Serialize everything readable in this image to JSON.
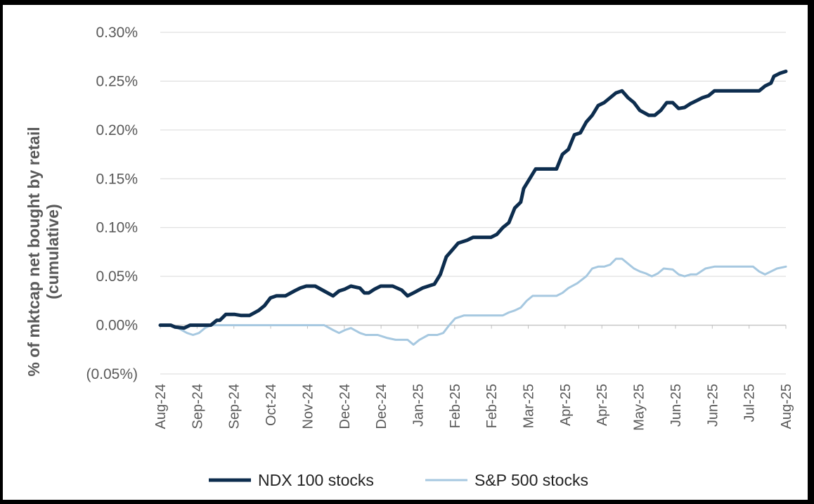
{
  "chart_data": {
    "type": "line",
    "ylabel": [
      "% of mktcap net bought  by retail",
      "(cumulative)"
    ],
    "xlabel": "",
    "ylim": [
      -0.05,
      0.3
    ],
    "yticks": [
      {
        "value": 0.3,
        "label": "0.30%"
      },
      {
        "value": 0.25,
        "label": "0.25%"
      },
      {
        "value": 0.2,
        "label": "0.20%"
      },
      {
        "value": 0.15,
        "label": "0.15%"
      },
      {
        "value": 0.1,
        "label": "0.10%"
      },
      {
        "value": 0.05,
        "label": "0.05%"
      },
      {
        "value": 0.0,
        "label": "0.00%"
      },
      {
        "value": -0.05,
        "label": "(0.05%)"
      }
    ],
    "xticks": [
      "Aug-24",
      "Sep-24",
      "Sep-24",
      "Oct-24",
      "Nov-24",
      "Dec-24",
      "Dec-24",
      "Jan-25",
      "Feb-25",
      "Feb-25",
      "Mar-25",
      "Apr-25",
      "Apr-25",
      "May-25",
      "Jun-25",
      "Jun-25",
      "Jul-25",
      "Aug-25"
    ],
    "grid": true,
    "legend_position": "bottom",
    "series": [
      {
        "name": "NDX 100 stocks",
        "color": "#0d2d4e",
        "points": [
          [
            0,
            0.0
          ],
          [
            0.35,
            0.0
          ],
          [
            0.5,
            -0.002
          ],
          [
            0.8,
            -0.003
          ],
          [
            1,
            0.0
          ],
          [
            1.4,
            0.0
          ],
          [
            1.7,
            0.0
          ],
          [
            1.9,
            0.005
          ],
          [
            2,
            0.005
          ],
          [
            2.2,
            0.011
          ],
          [
            2.5,
            0.011
          ],
          [
            2.7,
            0.01
          ],
          [
            3,
            0.01
          ],
          [
            3.3,
            0.015
          ],
          [
            3.5,
            0.02
          ],
          [
            3.7,
            0.028
          ],
          [
            3.9,
            0.03
          ],
          [
            4.2,
            0.03
          ],
          [
            4.5,
            0.035
          ],
          [
            4.7,
            0.038
          ],
          [
            4.9,
            0.04
          ],
          [
            5.2,
            0.04
          ],
          [
            5.5,
            0.035
          ],
          [
            5.8,
            0.03
          ],
          [
            6,
            0.035
          ],
          [
            6.2,
            0.037
          ],
          [
            6.4,
            0.04
          ],
          [
            6.7,
            0.038
          ],
          [
            6.85,
            0.033
          ],
          [
            7,
            0.033
          ],
          [
            7.2,
            0.037
          ],
          [
            7.4,
            0.04
          ],
          [
            7.8,
            0.04
          ],
          [
            8.1,
            0.036
          ],
          [
            8.3,
            0.03
          ],
          [
            8.5,
            0.033
          ],
          [
            8.8,
            0.038
          ],
          [
            9,
            0.04
          ],
          [
            9.2,
            0.042
          ],
          [
            9.4,
            0.052
          ],
          [
            9.6,
            0.07
          ],
          [
            9.8,
            0.077
          ],
          [
            10,
            0.084
          ],
          [
            10.3,
            0.087
          ],
          [
            10.5,
            0.09
          ],
          [
            10.9,
            0.09
          ],
          [
            11.1,
            0.09
          ],
          [
            11.3,
            0.093
          ],
          [
            11.5,
            0.1
          ],
          [
            11.7,
            0.105
          ],
          [
            11.9,
            0.12
          ],
          [
            12.1,
            0.126
          ],
          [
            12.2,
            0.14
          ],
          [
            12.4,
            0.15
          ],
          [
            12.6,
            0.16
          ],
          [
            12.9,
            0.16
          ],
          [
            13.1,
            0.16
          ],
          [
            13.3,
            0.16
          ],
          [
            13.5,
            0.175
          ],
          [
            13.7,
            0.18
          ],
          [
            13.9,
            0.195
          ],
          [
            14.1,
            0.197
          ],
          [
            14.3,
            0.208
          ],
          [
            14.5,
            0.215
          ],
          [
            14.7,
            0.225
          ],
          [
            14.9,
            0.228
          ],
          [
            15.1,
            0.233
          ],
          [
            15.3,
            0.238
          ],
          [
            15.5,
            0.24
          ],
          [
            15.7,
            0.233
          ],
          [
            15.9,
            0.228
          ],
          [
            16.1,
            0.22
          ],
          [
            16.4,
            0.215
          ],
          [
            16.6,
            0.215
          ],
          [
            16.8,
            0.22
          ],
          [
            17,
            0.228
          ],
          [
            17.2,
            0.228
          ],
          [
            17.4,
            0.222
          ],
          [
            17.6,
            0.223
          ],
          [
            17.8,
            0.227
          ],
          [
            18,
            0.23
          ],
          [
            18.2,
            0.233
          ],
          [
            18.4,
            0.235
          ],
          [
            18.6,
            0.24
          ],
          [
            18.9,
            0.24
          ],
          [
            19.2,
            0.24
          ],
          [
            19.5,
            0.24
          ],
          [
            19.8,
            0.24
          ],
          [
            20.1,
            0.24
          ],
          [
            20.3,
            0.245
          ],
          [
            20.5,
            0.248
          ],
          [
            20.6,
            0.255
          ],
          [
            20.8,
            0.258
          ],
          [
            21,
            0.26
          ]
        ]
      },
      {
        "name": "S&P 500 stocks",
        "color": "#a6c8e0",
        "points": [
          [
            0,
            0.0
          ],
          [
            0.4,
            0.0
          ],
          [
            0.6,
            -0.003
          ],
          [
            0.9,
            -0.008
          ],
          [
            1.1,
            -0.01
          ],
          [
            1.3,
            -0.008
          ],
          [
            1.5,
            -0.003
          ],
          [
            1.7,
            0.0
          ],
          [
            2.1,
            0.0
          ],
          [
            5.5,
            0.0
          ],
          [
            5.8,
            -0.005
          ],
          [
            6,
            -0.008
          ],
          [
            6.2,
            -0.005
          ],
          [
            6.4,
            -0.003
          ],
          [
            6.7,
            -0.008
          ],
          [
            6.9,
            -0.01
          ],
          [
            7.3,
            -0.01
          ],
          [
            7.6,
            -0.013
          ],
          [
            7.9,
            -0.015
          ],
          [
            8.3,
            -0.015
          ],
          [
            8.5,
            -0.02
          ],
          [
            8.7,
            -0.015
          ],
          [
            9,
            -0.01
          ],
          [
            9.3,
            -0.01
          ],
          [
            9.5,
            -0.008
          ],
          [
            9.7,
            0.0
          ],
          [
            9.9,
            0.007
          ],
          [
            10.2,
            0.01
          ],
          [
            10.6,
            0.01
          ],
          [
            11,
            0.01
          ],
          [
            11.5,
            0.01
          ],
          [
            11.7,
            0.013
          ],
          [
            11.9,
            0.015
          ],
          [
            12.1,
            0.018
          ],
          [
            12.3,
            0.025
          ],
          [
            12.5,
            0.03
          ],
          [
            12.9,
            0.03
          ],
          [
            13.3,
            0.03
          ],
          [
            13.5,
            0.033
          ],
          [
            13.7,
            0.038
          ],
          [
            14,
            0.043
          ],
          [
            14.3,
            0.05
          ],
          [
            14.5,
            0.058
          ],
          [
            14.7,
            0.06
          ],
          [
            14.9,
            0.06
          ],
          [
            15.1,
            0.062
          ],
          [
            15.3,
            0.068
          ],
          [
            15.5,
            0.068
          ],
          [
            15.7,
            0.063
          ],
          [
            15.9,
            0.058
          ],
          [
            16.1,
            0.055
          ],
          [
            16.3,
            0.053
          ],
          [
            16.5,
            0.05
          ],
          [
            16.7,
            0.053
          ],
          [
            16.9,
            0.058
          ],
          [
            17.2,
            0.057
          ],
          [
            17.4,
            0.052
          ],
          [
            17.6,
            0.05
          ],
          [
            17.8,
            0.052
          ],
          [
            18,
            0.052
          ],
          [
            18.3,
            0.058
          ],
          [
            18.6,
            0.06
          ],
          [
            19,
            0.06
          ],
          [
            19.5,
            0.06
          ],
          [
            19.9,
            0.06
          ],
          [
            20.1,
            0.055
          ],
          [
            20.3,
            0.052
          ],
          [
            20.5,
            0.055
          ],
          [
            20.7,
            0.058
          ],
          [
            21,
            0.06
          ]
        ]
      }
    ]
  }
}
